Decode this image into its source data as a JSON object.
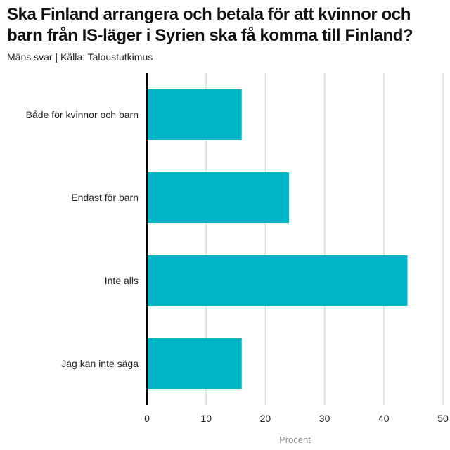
{
  "chart_data": {
    "type": "bar",
    "orientation": "horizontal",
    "title": "Ska Finland arrangera och betala för att kvinnor och barn från IS-läger i Syrien ska få komma till Finland?",
    "subtitle": "Mäns svar | Källa: Taloustutkimus",
    "categories": [
      "Både för kvinnor och barn",
      "Endast för barn",
      "Inte alls",
      "Jag kan inte säga"
    ],
    "values": [
      16,
      24,
      44,
      16
    ],
    "xlabel": "Procent",
    "xlim": [
      0,
      50
    ],
    "xticks": [
      "0",
      "10",
      "20",
      "30",
      "40",
      "50"
    ],
    "grid": true,
    "bar_color": "#00b4c8"
  }
}
